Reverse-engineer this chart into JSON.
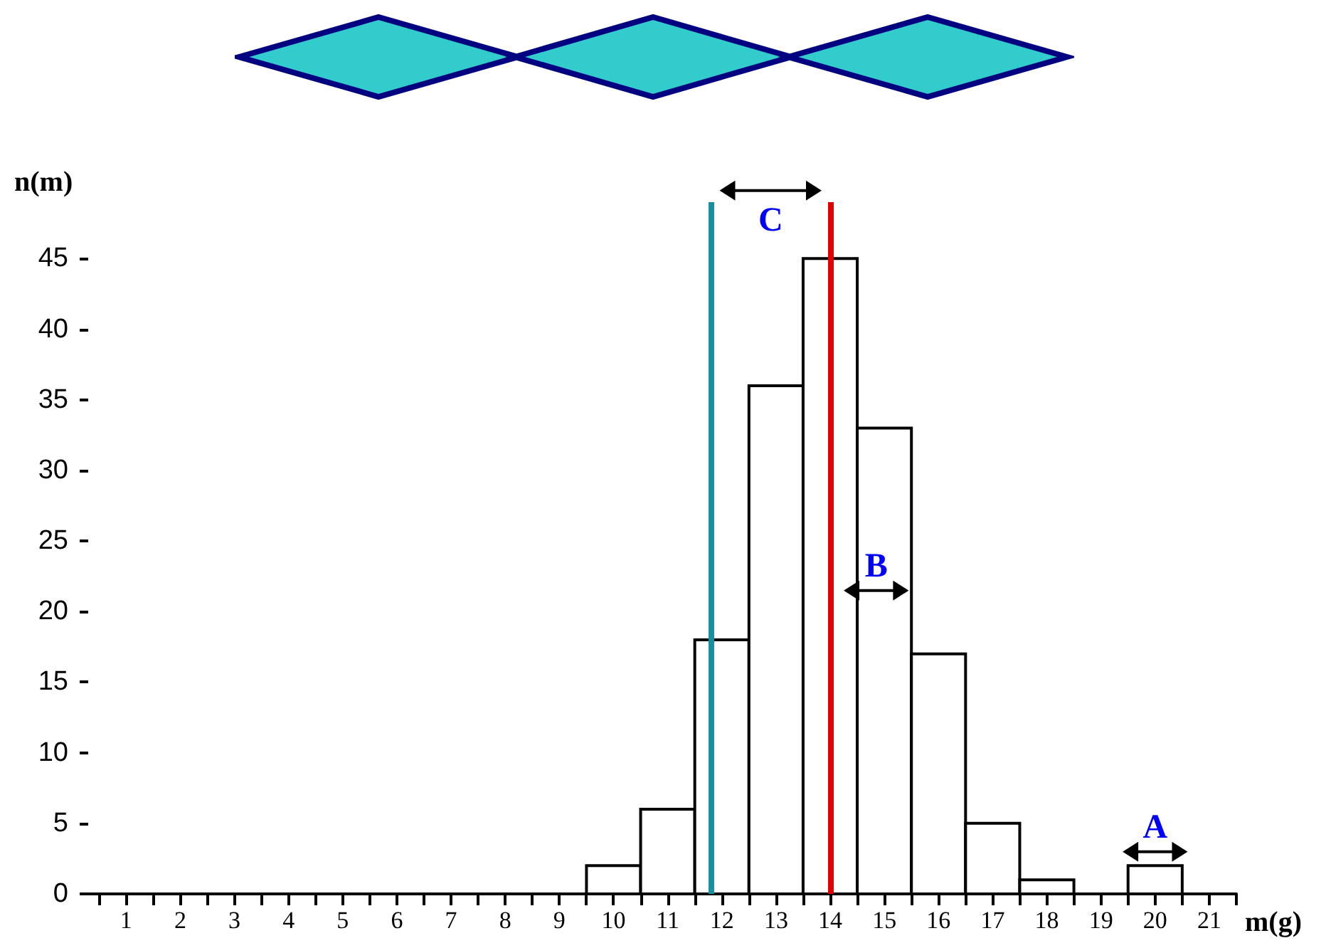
{
  "chart_data": {
    "type": "histogram",
    "xlabel": "m(g)",
    "ylabel": "n(m)",
    "bins": [
      9.5,
      10.5,
      11.5,
      12.5,
      13.5,
      14.5,
      15.5,
      16.5,
      17.5,
      18.5,
      19.5,
      20.5
    ],
    "values": [
      2,
      6,
      18,
      36,
      45,
      33,
      17,
      5,
      1,
      0,
      2
    ],
    "color": "#000000",
    "xlim": [
      0.3,
      21.5
    ],
    "xticks": [
      {
        "value": 0.5,
        "label": null
      },
      1,
      {
        "value": 1.5,
        "label": null
      },
      2,
      {
        "value": 2.5,
        "label": null
      },
      3,
      {
        "value": 3.5,
        "label": null
      },
      4,
      {
        "value": 4.5,
        "label": null
      },
      5,
      {
        "value": 5.5,
        "label": null
      },
      6,
      {
        "value": 6.5,
        "label": null
      },
      7,
      {
        "value": 7.5,
        "label": null
      },
      8,
      {
        "value": 8.5,
        "label": null
      },
      9,
      {
        "value": 9.5,
        "label": null
      },
      10,
      {
        "value": 10.5,
        "label": null
      },
      11,
      {
        "value": 11.5,
        "label": null
      },
      12,
      {
        "value": 12.5,
        "label": null
      },
      13,
      {
        "value": 13.5,
        "label": null
      },
      14,
      {
        "value": 14.5,
        "label": null
      },
      15,
      {
        "value": 15.5,
        "label": null
      },
      16,
      {
        "value": 16.5,
        "label": null
      },
      17,
      {
        "value": 17.5,
        "label": null
      },
      18,
      {
        "value": 18.5,
        "label": null
      },
      19,
      {
        "value": 19.5,
        "label": null
      },
      20,
      {
        "value": 20.5,
        "label": null
      },
      21,
      {
        "value": 21.5,
        "label": null
      }
    ],
    "ylim": [
      0,
      49
    ],
    "yticks": [
      0,
      5,
      10,
      15,
      20,
      25,
      30,
      35,
      40,
      45
    ],
    "grid": false,
    "ref_lines": [
      {
        "axis": "x",
        "value": 11.8,
        "color": "#1a8fa0"
      },
      {
        "axis": "x",
        "value": 14.0,
        "color": "#e00000"
      }
    ],
    "annotations": [
      "A",
      "B",
      "C"
    ]
  }
}
